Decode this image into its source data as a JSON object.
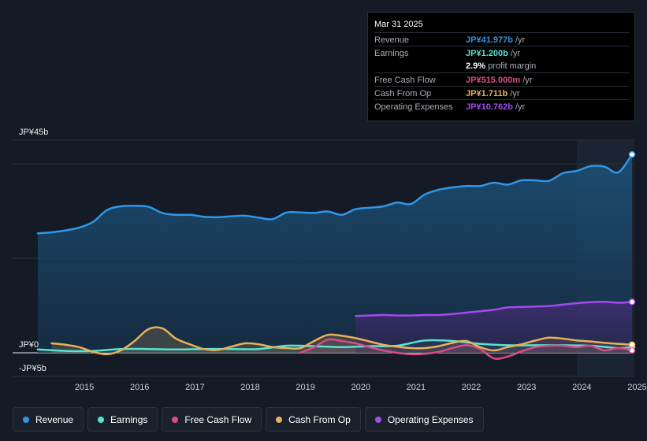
{
  "chart_data": {
    "type": "area",
    "title": "",
    "currency": "JP¥",
    "ylim": [
      -5,
      45
    ],
    "y_tick_labels": [
      {
        "value": 45,
        "label": "JP¥45b"
      },
      {
        "value": 0,
        "label": "JP¥0"
      },
      {
        "value": -5,
        "label": "-JP¥5b"
      }
    ],
    "x_range": [
      2014.5,
      2025.25
    ],
    "x_tick_labels": [
      "2015",
      "2016",
      "2017",
      "2018",
      "2019",
      "2020",
      "2021",
      "2022",
      "2023",
      "2024",
      "2025"
    ],
    "x_tick_values": [
      2015,
      2016,
      2017,
      2018,
      2019,
      2020,
      2021,
      2022,
      2023,
      2024,
      2025
    ],
    "forecast_start": 2024.25,
    "series": [
      {
        "name": "Revenue",
        "color": "#2f96e8",
        "x": [
          2014.5,
          2014.75,
          2015.0,
          2015.25,
          2015.5,
          2015.75,
          2016.0,
          2016.25,
          2016.5,
          2016.75,
          2017.0,
          2017.25,
          2017.5,
          2017.75,
          2018.0,
          2018.25,
          2018.5,
          2018.75,
          2019.0,
          2019.25,
          2019.5,
          2019.75,
          2020.0,
          2020.25,
          2020.5,
          2020.75,
          2021.0,
          2021.25,
          2021.5,
          2021.75,
          2022.0,
          2022.25,
          2022.5,
          2022.75,
          2023.0,
          2023.25,
          2023.5,
          2023.75,
          2024.0,
          2024.25,
          2024.5,
          2024.75,
          2025.0,
          2025.25
        ],
        "values": [
          25.3,
          25.5,
          25.9,
          26.5,
          27.7,
          30.2,
          31.0,
          31.1,
          30.9,
          29.6,
          29.2,
          29.2,
          28.8,
          28.7,
          28.9,
          29.0,
          28.6,
          28.3,
          29.7,
          29.7,
          29.6,
          29.9,
          29.2,
          30.4,
          30.7,
          31.0,
          31.8,
          31.5,
          33.5,
          34.5,
          35.0,
          35.3,
          35.3,
          36.0,
          35.6,
          36.5,
          36.5,
          36.4,
          38.0,
          38.5,
          39.5,
          39.4,
          38.2,
          41.977
        ]
      },
      {
        "name": "Earnings",
        "color": "#57e3d2",
        "x": [
          2014.5,
          2015.0,
          2015.5,
          2016.0,
          2016.5,
          2017.0,
          2017.5,
          2018.0,
          2018.5,
          2019.0,
          2019.5,
          2020.0,
          2020.5,
          2021.0,
          2021.5,
          2022.0,
          2022.5,
          2023.0,
          2023.5,
          2024.0,
          2024.5,
          2025.0,
          2025.25
        ],
        "values": [
          0.7,
          0.4,
          0.4,
          0.8,
          0.8,
          0.7,
          0.8,
          0.8,
          0.8,
          1.5,
          1.4,
          1.2,
          1.4,
          1.5,
          2.6,
          2.5,
          1.9,
          1.6,
          1.6,
          1.6,
          1.5,
          1.0,
          1.2
        ]
      },
      {
        "name": "Free Cash Flow",
        "color": "#d94c8a",
        "x": [
          2019.25,
          2019.5,
          2019.75,
          2020.0,
          2020.25,
          2020.5,
          2020.75,
          2021.0,
          2021.25,
          2021.5,
          2021.75,
          2022.0,
          2022.25,
          2022.5,
          2022.75,
          2023.0,
          2023.25,
          2023.5,
          2023.75,
          2024.0,
          2024.25,
          2024.5,
          2024.75,
          2025.0,
          2025.25
        ],
        "values": [
          0.0,
          1.2,
          2.8,
          2.5,
          2.0,
          1.2,
          0.5,
          0.0,
          -0.3,
          -0.2,
          0.2,
          1.0,
          1.6,
          0.8,
          -1.2,
          -0.8,
          0.3,
          1.2,
          1.5,
          1.5,
          1.2,
          1.5,
          0.5,
          1.0,
          0.515
        ]
      },
      {
        "name": "Cash From Op",
        "color": "#e8b05a",
        "x": [
          2014.75,
          2015.0,
          2015.25,
          2015.5,
          2015.75,
          2016.0,
          2016.25,
          2016.5,
          2016.75,
          2017.0,
          2017.25,
          2017.5,
          2017.75,
          2018.0,
          2018.25,
          2018.5,
          2018.75,
          2019.0,
          2019.25,
          2019.5,
          2019.75,
          2020.0,
          2020.25,
          2020.5,
          2020.75,
          2021.0,
          2021.25,
          2021.5,
          2021.75,
          2022.0,
          2022.25,
          2022.5,
          2022.75,
          2023.0,
          2023.25,
          2023.5,
          2023.75,
          2024.0,
          2024.25,
          2024.5,
          2024.75,
          2025.0,
          2025.25
        ],
        "values": [
          2.0,
          1.7,
          1.2,
          0.2,
          -0.3,
          0.5,
          2.5,
          5.0,
          5.2,
          3.0,
          1.8,
          0.8,
          0.6,
          1.3,
          2.0,
          1.8,
          1.2,
          1.0,
          1.0,
          2.5,
          3.8,
          3.6,
          3.1,
          2.4,
          1.7,
          1.3,
          1.0,
          1.0,
          1.4,
          2.1,
          2.5,
          1.2,
          0.5,
          1.2,
          1.8,
          2.6,
          3.2,
          3.0,
          2.6,
          2.4,
          2.1,
          1.9,
          1.711
        ]
      },
      {
        "name": "Operating Expenses",
        "color": "#a34bef",
        "x": [
          2020.25,
          2020.5,
          2020.75,
          2021.0,
          2021.25,
          2021.5,
          2021.75,
          2022.0,
          2022.25,
          2022.5,
          2022.75,
          2023.0,
          2023.25,
          2023.5,
          2023.75,
          2024.0,
          2024.25,
          2024.5,
          2024.75,
          2025.0,
          2025.25
        ],
        "values": [
          7.8,
          7.9,
          8.0,
          7.9,
          7.9,
          8.0,
          8.0,
          8.2,
          8.5,
          8.8,
          9.1,
          9.6,
          9.7,
          9.8,
          9.9,
          10.2,
          10.5,
          10.7,
          10.8,
          10.6,
          10.762
        ]
      }
    ]
  },
  "tooltip": {
    "date": "Mar 31 2025",
    "rows": [
      {
        "label": "Revenue",
        "value": "JP¥41.977b",
        "unit": "/yr",
        "color": "#2f96e8"
      },
      {
        "label": "Earnings",
        "value": "JP¥1.200b",
        "unit": "/yr",
        "color": "#57e3d2"
      },
      {
        "label": "",
        "value": "2.9%",
        "unit": "profit margin",
        "color": "#ffffff"
      },
      {
        "label": "Free Cash Flow",
        "value": "JP¥515.000m",
        "unit": "/yr",
        "color": "#d94c8a"
      },
      {
        "label": "Cash From Op",
        "value": "JP¥1.711b",
        "unit": "/yr",
        "color": "#e8b05a"
      },
      {
        "label": "Operating Expenses",
        "value": "JP¥10.762b",
        "unit": "/yr",
        "color": "#a34bef"
      }
    ]
  },
  "legend": [
    {
      "label": "Revenue",
      "color": "#2f96e8"
    },
    {
      "label": "Earnings",
      "color": "#57e3d2"
    },
    {
      "label": "Free Cash Flow",
      "color": "#d94c8a"
    },
    {
      "label": "Cash From Op",
      "color": "#e8b05a"
    },
    {
      "label": "Operating Expenses",
      "color": "#a34bef"
    }
  ]
}
